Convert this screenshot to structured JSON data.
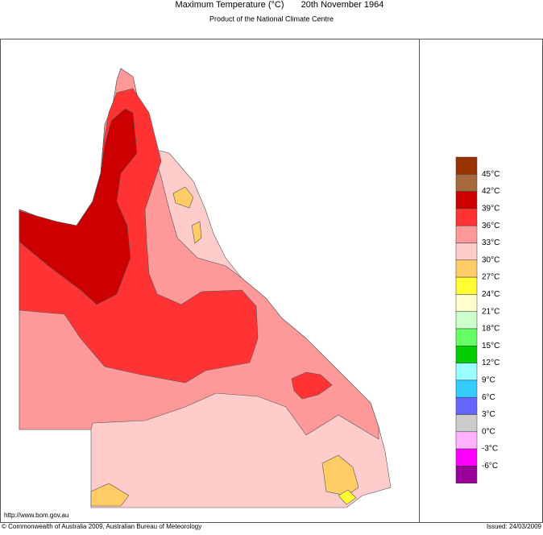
{
  "header": {
    "title": "Maximum Temperature (°C)",
    "date": "20th November 1964",
    "subtitle": "Product of the National Climate Centre"
  },
  "legend": {
    "colors": [
      "#993300",
      "#a8693c",
      "#cc0000",
      "#ff3333",
      "#ff9999",
      "#ffcccc",
      "#ffcc66",
      "#ffff33",
      "#ffffcc",
      "#ccffcc",
      "#66ff66",
      "#00cc00",
      "#99ffff",
      "#33ccff",
      "#6666ff",
      "#cccccc",
      "#ffb3ff",
      "#ff00ff",
      "#990099"
    ],
    "labels": [
      "45°C",
      "42°C",
      "39°C",
      "36°C",
      "33°C",
      "30°C",
      "27°C",
      "24°C",
      "21°C",
      "18°C",
      "15°C",
      "12°C",
      "9°C",
      "6°C",
      "3°C",
      "0°C",
      "-3°C",
      "-6°C"
    ]
  },
  "footer": {
    "url": "http://www.bom.gov.au",
    "copyright": "© Commonwealth of Australia 2009, Australian Bureau of Meteorology",
    "issued": "Issued: 24/03/2009"
  }
}
